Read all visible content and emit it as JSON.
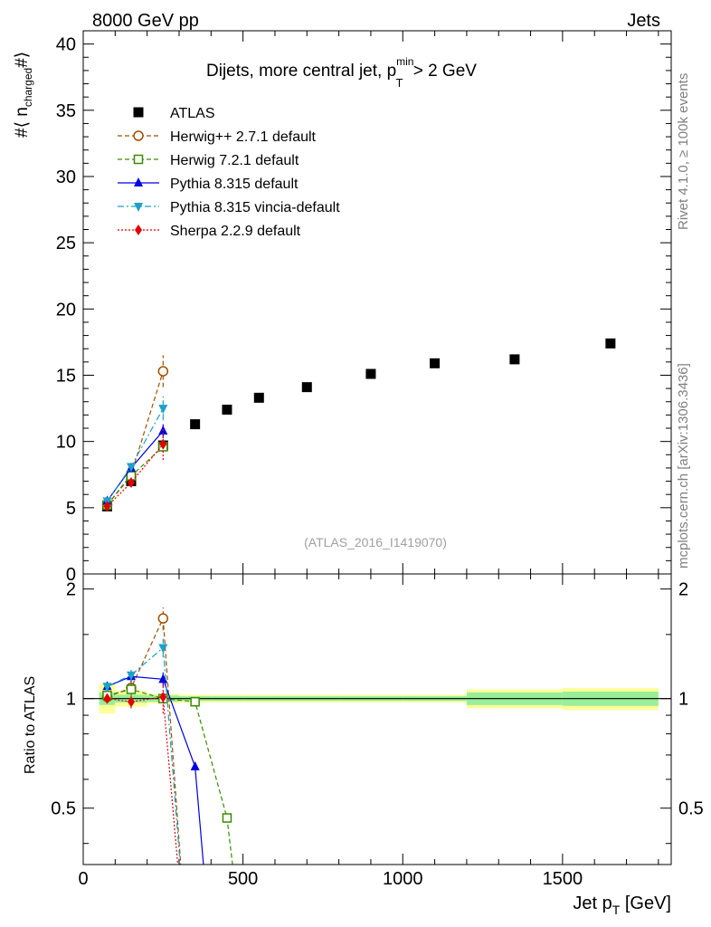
{
  "header": {
    "left": "8000 GeV pp",
    "right": "Jets"
  },
  "side_text": {
    "rivet": "Rivet 4.1.0, ≥ 100k events",
    "mcplots": "mcplots.cern.ch [arXiv:1306.3436]"
  },
  "chart_data": [
    {
      "type": "scatter",
      "panel": "main",
      "title": {
        "prefix": "Dijets, more central jet, p",
        "sup": "min",
        "sub": "T",
        "suffix": " > 2 GeV"
      },
      "ylabel": {
        "prefix": "#⟨ n",
        "sub": "charged",
        "suffix": "#⟩"
      },
      "xlim": [
        0,
        1840
      ],
      "ylim": [
        0,
        41
      ],
      "yticks": [
        0,
        5,
        10,
        15,
        20,
        25,
        30,
        35,
        40
      ],
      "ytick_labels": [
        "0",
        "5",
        "10",
        "15",
        "20",
        "25",
        "30",
        "35",
        "40"
      ],
      "reference": "(ATLAS_2016_I1419070)",
      "series": [
        {
          "name": "ATLAS",
          "color": "#000000",
          "marker": "square-filled",
          "line": "none",
          "x": [
            75,
            150,
            250,
            350,
            450,
            550,
            700,
            900,
            1100,
            1350,
            1650
          ],
          "y": [
            5.1,
            7.0,
            9.7,
            11.3,
            12.4,
            13.3,
            14.1,
            15.1,
            15.9,
            16.2,
            17.4
          ]
        },
        {
          "name": "Herwig++ 2.7.1 default",
          "color": "#a05000",
          "marker": "circle-open",
          "line": "dashed",
          "x": [
            75,
            150,
            250
          ],
          "y": [
            5.2,
            7.5,
            15.3
          ],
          "yerr": [
            0.2,
            0.3,
            1.2
          ]
        },
        {
          "name": "Herwig 7.2.1 default",
          "color": "#3a8a00",
          "marker": "square-open",
          "line": "dashed",
          "x": [
            75,
            150,
            250
          ],
          "y": [
            5.2,
            7.4,
            9.6
          ],
          "yerr": [
            0.2,
            0.3,
            0.4
          ]
        },
        {
          "name": "Pythia 8.315 default",
          "color": "#0000e0",
          "marker": "triangle-up",
          "line": "solid",
          "x": [
            75,
            150,
            250
          ],
          "y": [
            5.5,
            8.0,
            10.8
          ],
          "yerr": [
            0.15,
            0.3,
            0.5
          ]
        },
        {
          "name": "Pythia 8.315 vincia-default",
          "color": "#1ea0c8",
          "marker": "triangle-down",
          "line": "dashdot",
          "x": [
            75,
            150,
            250
          ],
          "y": [
            5.5,
            8.1,
            12.5
          ],
          "yerr": [
            0.15,
            0.3,
            0.9
          ]
        },
        {
          "name": "Sherpa 2.2.9 default",
          "color": "#e00000",
          "marker": "diamond",
          "line": "dotted",
          "x": [
            75,
            150,
            250
          ],
          "y": [
            5.1,
            6.9,
            9.8
          ],
          "yerr": [
            0.15,
            0.3,
            1.2
          ]
        }
      ]
    },
    {
      "type": "line",
      "panel": "ratio",
      "ylabel": "Ratio to ATLAS",
      "xlabel": {
        "prefix": "Jet p",
        "sub": "T",
        "suffix": " [GeV]"
      },
      "xlim": [
        0,
        1840
      ],
      "xticks": [
        0,
        500,
        1000,
        1500
      ],
      "xtick_labels": [
        "0",
        "500",
        "1000",
        "1500"
      ],
      "ylim": [
        0.35,
        2.2
      ],
      "yticks": [
        0.5,
        1,
        2
      ],
      "ytick_labels": [
        "0.5",
        "1",
        "2"
      ],
      "bands": [
        {
          "x0": 50,
          "x1": 100,
          "stat_lo": 0.96,
          "stat_hi": 1.04,
          "tot_lo": 0.91,
          "tot_hi": 1.1
        },
        {
          "x0": 100,
          "x1": 200,
          "stat_lo": 0.975,
          "stat_hi": 1.025,
          "tot_lo": 0.95,
          "tot_hi": 1.05
        },
        {
          "x0": 200,
          "x1": 300,
          "stat_lo": 0.98,
          "stat_hi": 1.02,
          "tot_lo": 0.97,
          "tot_hi": 1.03
        },
        {
          "x0": 300,
          "x1": 400,
          "stat_lo": 0.985,
          "stat_hi": 1.015,
          "tot_lo": 0.975,
          "tot_hi": 1.025
        },
        {
          "x0": 400,
          "x1": 500,
          "stat_lo": 0.985,
          "stat_hi": 1.015,
          "tot_lo": 0.975,
          "tot_hi": 1.025
        },
        {
          "x0": 500,
          "x1": 600,
          "stat_lo": 0.985,
          "stat_hi": 1.015,
          "tot_lo": 0.975,
          "tot_hi": 1.025
        },
        {
          "x0": 600,
          "x1": 800,
          "stat_lo": 0.985,
          "stat_hi": 1.015,
          "tot_lo": 0.975,
          "tot_hi": 1.025
        },
        {
          "x0": 800,
          "x1": 1000,
          "stat_lo": 0.985,
          "stat_hi": 1.015,
          "tot_lo": 0.975,
          "tot_hi": 1.025
        },
        {
          "x0": 1000,
          "x1": 1200,
          "stat_lo": 0.985,
          "stat_hi": 1.015,
          "tot_lo": 0.975,
          "tot_hi": 1.025
        },
        {
          "x0": 1200,
          "x1": 1500,
          "stat_lo": 0.96,
          "stat_hi": 1.04,
          "tot_lo": 0.94,
          "tot_hi": 1.06
        },
        {
          "x0": 1500,
          "x1": 1800,
          "stat_lo": 0.955,
          "stat_hi": 1.045,
          "tot_lo": 0.93,
          "tot_hi": 1.07
        }
      ],
      "series": [
        {
          "name": "Herwig++ 2.7.1 default",
          "color": "#a05000",
          "marker": "circle-open",
          "line": "dashed",
          "x": [
            75,
            150,
            250,
            325
          ],
          "y": [
            1.01,
            1.07,
            1.66,
            0.2
          ],
          "yerr": [
            0.02,
            0.04,
            0.12,
            0
          ],
          "markers": [
            true,
            true,
            true,
            false
          ]
        },
        {
          "name": "Herwig 7.2.1 default",
          "color": "#3a8a00",
          "marker": "square-open",
          "line": "dashed",
          "x": [
            75,
            150,
            250,
            350,
            450,
            500
          ],
          "y": [
            1.02,
            1.06,
            1.0,
            0.98,
            0.47,
            0.2
          ],
          "yerr": [
            0.03,
            0.04,
            0.03,
            0,
            0,
            0
          ],
          "markers": [
            true,
            true,
            true,
            true,
            true,
            false
          ]
        },
        {
          "name": "Pythia 8.315 default",
          "color": "#0000e0",
          "marker": "triangle-up",
          "line": "solid",
          "x": [
            75,
            150,
            250,
            350,
            400
          ],
          "y": [
            1.08,
            1.15,
            1.13,
            0.65,
            0.2
          ],
          "yerr": [
            0.03,
            0.04,
            0.05,
            0,
            0
          ],
          "markers": [
            true,
            true,
            true,
            true,
            false
          ]
        },
        {
          "name": "Pythia 8.315 vincia-default",
          "color": "#1ea0c8",
          "marker": "triangle-down",
          "line": "dashdot",
          "x": [
            75,
            150,
            250,
            325
          ],
          "y": [
            1.08,
            1.16,
            1.38,
            0.2
          ],
          "yerr": [
            0.03,
            0.04,
            0.08,
            0
          ],
          "markers": [
            true,
            true,
            true,
            false
          ]
        },
        {
          "name": "Sherpa 2.2.9 default",
          "color": "#e00000",
          "marker": "diamond",
          "line": "dotted",
          "x": [
            75,
            150,
            250,
            320
          ],
          "y": [
            1.0,
            0.98,
            1.01,
            0.2
          ],
          "yerr": [
            0.03,
            0.04,
            0.1,
            0
          ],
          "markers": [
            true,
            true,
            true,
            false
          ]
        }
      ]
    }
  ]
}
